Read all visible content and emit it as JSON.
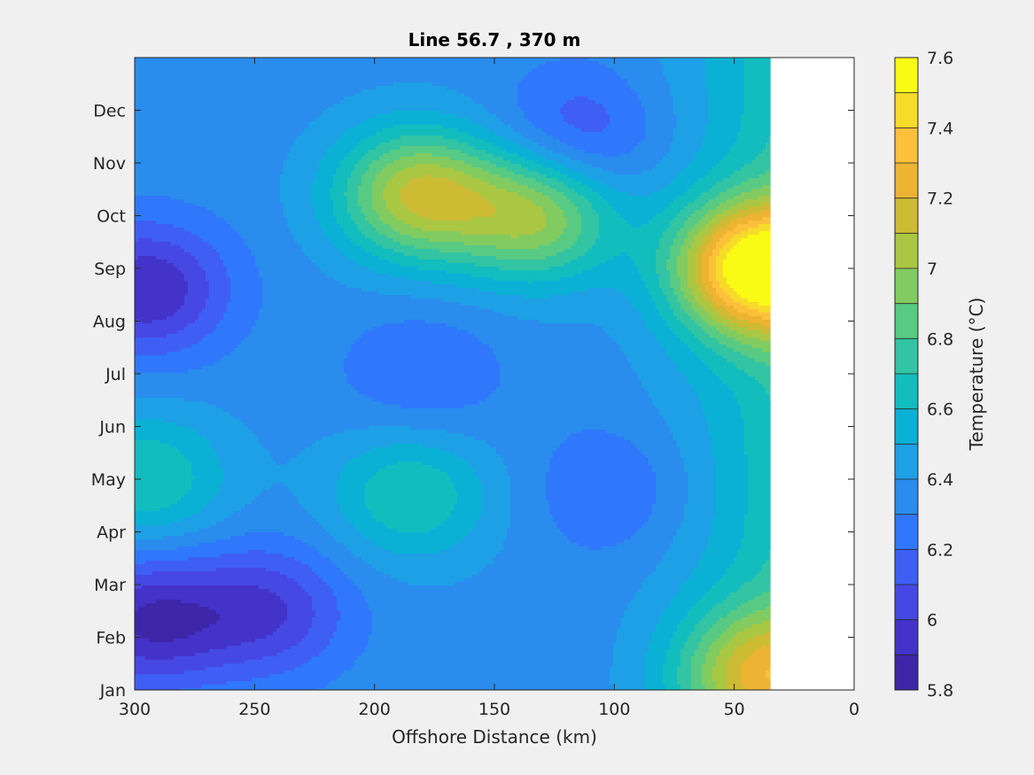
{
  "chart_data": {
    "type": "contour",
    "title": "Line 56.7 , 370 m",
    "xlabel": "Offshore Distance (km)",
    "ylabel": "",
    "xlim": [
      300,
      0
    ],
    "x_reversed": true,
    "x_ticks": [
      300,
      250,
      200,
      150,
      100,
      50,
      0
    ],
    "x_tick_labels": [
      "300",
      "250",
      "200",
      "150",
      "100",
      "50",
      "0"
    ],
    "y_ticks": [
      "Jan",
      "Feb",
      "Mar",
      "Apr",
      "May",
      "Jun",
      "Jul",
      "Aug",
      "Sep",
      "Oct",
      "Nov",
      "Dec"
    ],
    "data_extent_km": [
      35,
      300
    ],
    "colorbar": {
      "label": "Temperature (°C)",
      "range": [
        5.8,
        7.6
      ],
      "levels": [
        5.8,
        5.9,
        6.0,
        6.1,
        6.2,
        6.3,
        6.4,
        6.5,
        6.6,
        6.7,
        6.8,
        6.9,
        7.0,
        7.1,
        7.2,
        7.3,
        7.4,
        7.5,
        7.6
      ],
      "tick_values": [
        5.8,
        6.0,
        6.2,
        6.4,
        6.6,
        6.8,
        7.0,
        7.2,
        7.4,
        7.6
      ],
      "tick_labels": [
        "5.8",
        "6",
        "6.2",
        "6.4",
        "6.6",
        "6.8",
        "7",
        "7.2",
        "7.4",
        "7.6"
      ],
      "colors": [
        "#3e26a8",
        "#4433c9",
        "#4648e3",
        "#3f5ef4",
        "#2f78fb",
        "#2a8ced",
        "#1ea0e6",
        "#0bb1d5",
        "#13bdbe",
        "#32c4a3",
        "#58ca83",
        "#82cb61",
        "#a9c743",
        "#cdbb34",
        "#ecb432",
        "#fdc03a",
        "#f6db2a",
        "#f9fb15"
      ]
    },
    "features": [
      {
        "kind": "warm-core",
        "x_km": 40,
        "month": 9.0,
        "value": 7.5
      },
      {
        "kind": "warm-core",
        "x_km": 182,
        "month": 10.4,
        "value": 7.1
      },
      {
        "kind": "warm-core",
        "x_km": 132,
        "month": 10.0,
        "value": 7.0
      },
      {
        "kind": "cold-core",
        "x_km": 295,
        "month": 8.6,
        "value": 5.9
      },
      {
        "kind": "cold-core",
        "x_km": 245,
        "month": 2.5,
        "value": 6.0
      },
      {
        "kind": "cold-core",
        "x_km": 295,
        "month": 2.3,
        "value": 5.9
      },
      {
        "kind": "cold-core",
        "x_km": 115,
        "month": 11.5,
        "value": 6.1
      },
      {
        "kind": "cold-core",
        "x_km": 100,
        "month": 4.8,
        "value": 6.2
      },
      {
        "kind": "cold-core",
        "x_km": 180,
        "month": 7.0,
        "value": 6.2
      },
      {
        "kind": "mid",
        "x_km": 295,
        "month": 5.0,
        "value": 6.7
      },
      {
        "kind": "mid",
        "x_km": 185,
        "month": 4.7,
        "value": 6.7
      },
      {
        "kind": "mid",
        "x_km": 40,
        "month": 1.3,
        "value": 7.0
      }
    ]
  }
}
